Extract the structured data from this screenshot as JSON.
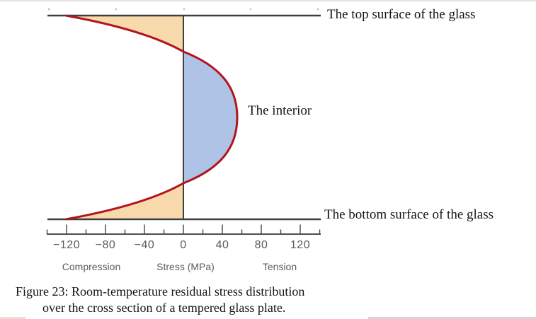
{
  "labels": {
    "top_surface": "The top surface of the glass",
    "interior": "The interior",
    "bottom_surface": "The bottom surface of the glass"
  },
  "axis_words": {
    "compression": "Compression",
    "stress_units": "Stress (MPa)",
    "tension": "Tension"
  },
  "caption": {
    "line1": "Figure 23: Room-temperature residual stress distribution",
    "line2": "over the cross section of a tempered glass plate."
  },
  "chart_data": {
    "type": "area",
    "title": "Room-temperature residual stress distribution over the cross section of a tempered glass plate",
    "xlabel": "Stress (MPa)",
    "x_side_labels": {
      "negative": "Compression",
      "positive": "Tension"
    },
    "axis": {
      "range_mpa": [
        -140,
        140
      ],
      "major_ticks": [
        {
          "v": -120,
          "label": "−120"
        },
        {
          "v": -80,
          "label": "−80"
        },
        {
          "v": -40,
          "label": "−40"
        },
        {
          "v": 0,
          "label": "0"
        },
        {
          "v": 40,
          "label": "40"
        },
        {
          "v": 80,
          "label": "80"
        },
        {
          "v": 120,
          "label": "120"
        }
      ],
      "minor_ticks": [
        -140,
        -100,
        -60,
        -20,
        20,
        60,
        100,
        140
      ]
    },
    "profile": {
      "depth_axis": "fraction of plate thickness from top surface",
      "stress_units": "MPa",
      "surface_compression_mpa": -120,
      "peak_interior_tension_mpa": 55,
      "points": [
        {
          "depth": 0.0,
          "stress": -120
        },
        {
          "depth": 0.17,
          "stress": 0
        },
        {
          "depth": 0.5,
          "stress": 55
        },
        {
          "depth": 0.83,
          "stress": 0
        },
        {
          "depth": 1.0,
          "stress": -120
        }
      ]
    },
    "colors": {
      "compression_fill": "#f7d9ab",
      "tension_fill": "#aec3e6",
      "curve": "#b3141f",
      "axis_line": "#3f3f3f",
      "tick": "#4f4f4f",
      "axis_text": "#5b5b5b"
    }
  }
}
